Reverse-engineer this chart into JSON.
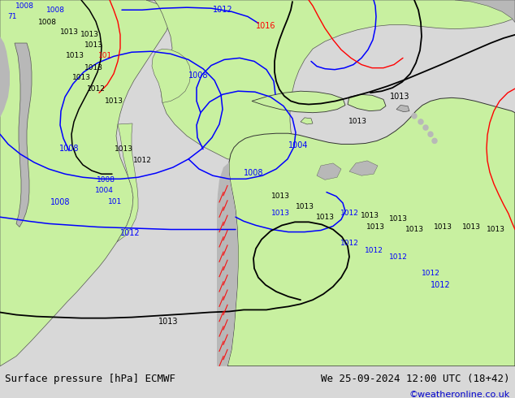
{
  "title_left": "Surface pressure [hPa] ECMWF",
  "title_right": "We 25-09-2024 12:00 UTC (18+42)",
  "credit": "©weatheronline.co.uk",
  "bg_color": "#d8d8d8",
  "land_color": "#c8f0a0",
  "sea_color": "#d8d8d8",
  "highland_color": "#b8b8b8",
  "fig_width": 6.34,
  "fig_height": 4.9,
  "dpi": 100,
  "bottom_bar_color": "#c8c8c8",
  "title_fontsize": 9,
  "credit_color": "#0000cc",
  "credit_fontsize": 8
}
